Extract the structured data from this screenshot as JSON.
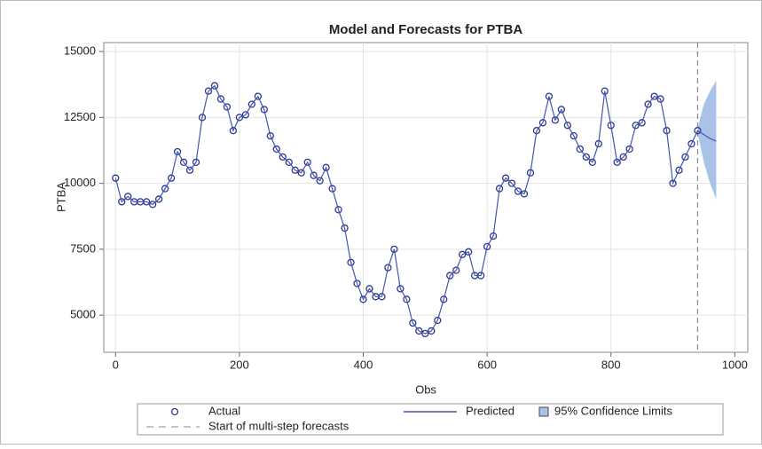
{
  "chart_data": {
    "type": "line",
    "title": "Model and Forecasts for PTBA",
    "xlabel": "Obs",
    "ylabel": "PTBA",
    "xlim": [
      -19,
      1021
    ],
    "ylim": [
      3590,
      15340
    ],
    "xticks": [
      0,
      200,
      400,
      600,
      800,
      1000
    ],
    "yticks": [
      5000,
      7500,
      10000,
      12500,
      15000
    ],
    "grid": true,
    "series": [
      {
        "name": "Actual",
        "color": "#2b3890",
        "marker": "circle",
        "x": [
          0,
          10,
          20,
          30,
          40,
          50,
          60,
          70,
          80,
          90,
          100,
          110,
          120,
          130,
          140,
          150,
          160,
          170,
          180,
          190,
          200,
          210,
          220,
          230,
          240,
          250,
          260,
          270,
          280,
          290,
          300,
          310,
          320,
          330,
          340,
          350,
          360,
          370,
          380,
          390,
          400,
          410,
          420,
          430,
          440,
          450,
          460,
          470,
          480,
          490,
          500,
          510,
          520,
          530,
          540,
          550,
          560,
          570,
          580,
          590,
          600,
          610,
          620,
          630,
          640,
          650,
          660,
          670,
          680,
          690,
          700,
          710,
          720,
          730,
          740,
          750,
          760,
          770,
          780,
          790,
          800,
          810,
          820,
          830,
          840,
          850,
          860,
          870,
          880,
          890,
          900,
          910,
          920,
          930,
          940
        ],
        "values": [
          10200,
          9300,
          9500,
          9300,
          9300,
          9300,
          9200,
          9400,
          9800,
          10200,
          11200,
          10800,
          10500,
          10800,
          12500,
          13500,
          13700,
          13200,
          12900,
          12000,
          12500,
          12600,
          13000,
          13300,
          12800,
          11800,
          11300,
          11000,
          10800,
          10500,
          10400,
          10800,
          10300,
          10100,
          10600,
          9800,
          9000,
          8300,
          7000,
          6200,
          5600,
          6000,
          5700,
          5700,
          6800,
          7500,
          6000,
          5600,
          4700,
          4400,
          4300,
          4400,
          4800,
          5600,
          6500,
          6700,
          7300,
          7400,
          6500,
          6500,
          7600,
          8000,
          9800,
          10200,
          10000,
          9700,
          9600,
          10400,
          12000,
          12300,
          13300,
          12400,
          12800,
          12200,
          11800,
          11300,
          11000,
          10800,
          11500,
          13500,
          12200,
          10800,
          11000,
          11300,
          12200,
          12300,
          13000,
          13300,
          13200,
          12000,
          10000,
          10500,
          11000,
          11500,
          12000
        ]
      },
      {
        "name": "Predicted",
        "color": "#4454b0",
        "marker": "line",
        "x": [
          0,
          10,
          20,
          30,
          40,
          50,
          60,
          70,
          80,
          90,
          100,
          110,
          120,
          130,
          140,
          150,
          160,
          170,
          180,
          190,
          200,
          210,
          220,
          230,
          240,
          250,
          260,
          270,
          280,
          290,
          300,
          310,
          320,
          330,
          340,
          350,
          360,
          370,
          380,
          390,
          400,
          410,
          420,
          430,
          440,
          450,
          460,
          470,
          480,
          490,
          500,
          510,
          520,
          530,
          540,
          550,
          560,
          570,
          580,
          590,
          600,
          610,
          620,
          630,
          640,
          650,
          660,
          670,
          680,
          690,
          700,
          710,
          720,
          730,
          740,
          750,
          760,
          770,
          780,
          790,
          800,
          810,
          820,
          830,
          840,
          850,
          860,
          870,
          880,
          890,
          900,
          910,
          920,
          930,
          940,
          950,
          960,
          970
        ],
        "values": [
          10200,
          9300,
          9500,
          9300,
          9300,
          9300,
          9200,
          9400,
          9800,
          10200,
          11200,
          10800,
          10500,
          10800,
          12500,
          13500,
          13700,
          13200,
          12900,
          12000,
          12500,
          12600,
          13000,
          13300,
          12800,
          11800,
          11300,
          11000,
          10800,
          10500,
          10400,
          10800,
          10300,
          10100,
          10600,
          9800,
          9000,
          8300,
          7000,
          6200,
          5600,
          6000,
          5700,
          5700,
          6800,
          7500,
          6000,
          5600,
          4700,
          4400,
          4300,
          4400,
          4800,
          5600,
          6500,
          6700,
          7300,
          7400,
          6500,
          6500,
          7600,
          8000,
          9800,
          10200,
          10000,
          9700,
          9600,
          10400,
          12000,
          12300,
          13300,
          12400,
          12800,
          12200,
          11800,
          11300,
          11000,
          10800,
          11500,
          13500,
          12200,
          10800,
          11000,
          11300,
          12200,
          12300,
          13000,
          13300,
          13200,
          12000,
          10000,
          10500,
          11000,
          11500,
          12000,
          11850,
          11700,
          11600
        ]
      }
    ],
    "band": {
      "name": "95% Confidence Limits",
      "color": "#a9c3e8",
      "x": [
        940,
        950,
        960,
        970
      ],
      "lower": [
        11900,
        10800,
        10000,
        9400
      ],
      "upper": [
        12100,
        13000,
        13500,
        13900
      ]
    },
    "reference_line": {
      "name": "Start of multi-step forecasts",
      "x": 940,
      "color": "#888888"
    }
  }
}
